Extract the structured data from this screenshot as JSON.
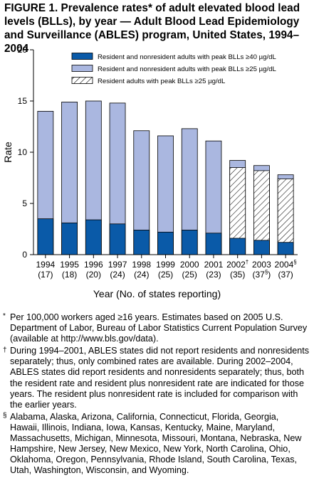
{
  "figure": {
    "title": "FIGURE 1. Prevalence rates* of adult elevated blood lead levels (BLLs), by year — Adult Blood Lead Epidemiology and Surveillance (ABLES) program, United States, 1994–2004"
  },
  "chart_data": {
    "type": "bar",
    "categories": [
      "1994",
      "1995",
      "1996",
      "1997",
      "1998",
      "1999",
      "2000",
      "2001",
      "2002",
      "2003",
      "2004"
    ],
    "category_sublabels": [
      "(17)",
      "(18)",
      "(20)",
      "(24)",
      "(24)",
      "(25)",
      "(25)",
      "(23)",
      "(35)",
      "(37)",
      "(37)"
    ],
    "category_footnote_marks": [
      "",
      "",
      "",
      "",
      "",
      "",
      "",
      "",
      "†",
      "",
      "§"
    ],
    "sublabel_footnote_marks": [
      "",
      "",
      "",
      "",
      "",
      "",
      "",
      "",
      "",
      "§",
      ""
    ],
    "xlabel": "Year (No. of states reporting)",
    "ylabel": "Rate",
    "ylim": [
      0,
      20
    ],
    "yticks": [
      0,
      5,
      10,
      15,
      20
    ],
    "legend_position": "top-right",
    "grid": false,
    "series": [
      {
        "name": "Resident and nonresident adults with peak BLLs ≥40 µg/dL",
        "color": "#0a5aa8",
        "pattern": "solid",
        "values": [
          3.5,
          3.1,
          3.4,
          3.0,
          2.4,
          2.2,
          2.4,
          2.1,
          1.6,
          1.4,
          1.2
        ]
      },
      {
        "name": "Resident and nonresident adults with peak BLLs ≥25 µg/dL",
        "color": "#aab7e0",
        "pattern": "solid",
        "values": [
          14.0,
          14.9,
          15.0,
          14.8,
          12.1,
          11.6,
          12.3,
          11.1,
          9.2,
          8.7,
          7.8
        ]
      },
      {
        "name": "Resident adults with peak BLLs ≥25 µg/dL",
        "color": "#ffffff",
        "pattern": "hatched",
        "values": [
          null,
          null,
          null,
          null,
          null,
          null,
          null,
          null,
          8.5,
          8.2,
          7.4
        ]
      }
    ]
  },
  "footnotes": {
    "star_mark": "*",
    "star": "Per 100,000 workers aged ≥16 years. Estimates based on 2005 U.S. Department of Labor, Bureau of Labor Statistics Current Population Survey (available at http://www.bls.gov/data).",
    "dagger_mark": "†",
    "dagger": "During 1994–2001, ABLES states did not report residents and nonresidents separately; thus, only combined rates are available. During 2002–2004, ABLES states did report residents and nonresidents separately; thus, both the resident rate and resident plus nonresident rate are indicated for those years. The resident plus nonresident rate is included for comparison with the earlier years.",
    "section_mark": "§",
    "section": "Alabama, Alaska, Arizona, California, Connecticut, Florida, Georgia, Hawaii, Illinois, Indiana, Iowa, Kansas, Kentucky, Maine, Maryland, Massachusetts, Michigan, Minnesota, Missouri, Montana, Nebraska, New Hampshire, New Jersey, New Mexico, New York, North Carolina, Ohio, Oklahoma, Oregon, Pennsylvania, Rhode Island, South Carolina, Texas, Utah, Washington, Wisconsin, and Wyoming."
  }
}
